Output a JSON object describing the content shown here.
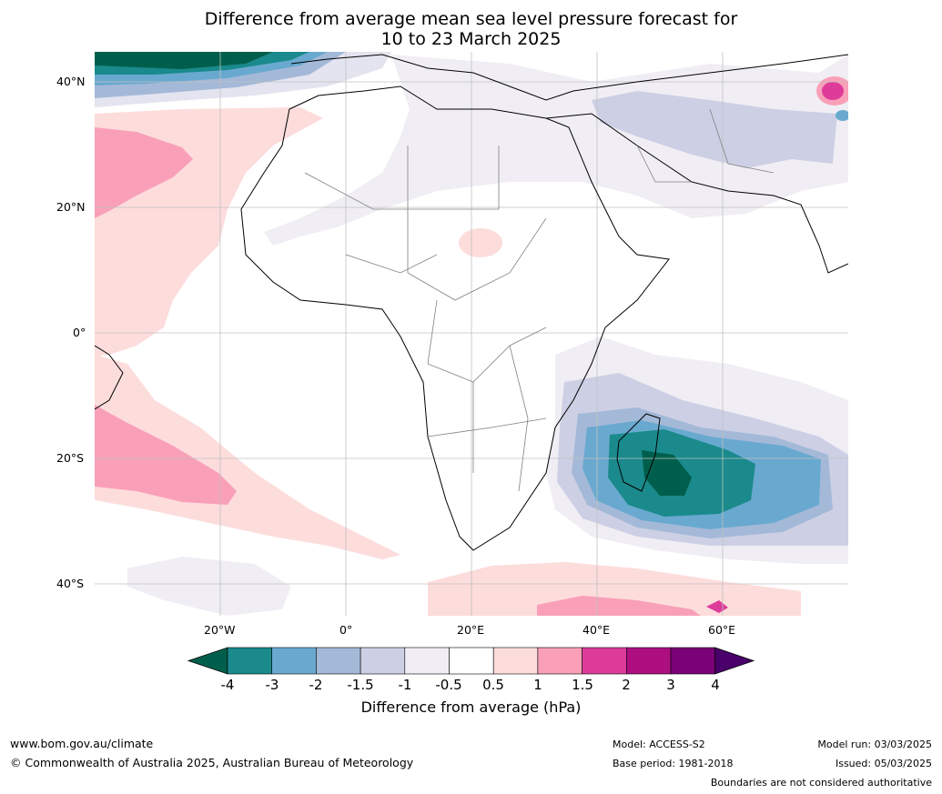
{
  "title_line1": "Difference from average mean sea level pressure forecast for",
  "title_line2": "10 to 23 March 2025",
  "lat_labels": [
    "40°N",
    "20°N",
    "0°",
    "20°S",
    "40°S"
  ],
  "lon_labels": [
    "20°W",
    "0°",
    "20°E",
    "40°E",
    "60°E"
  ],
  "colorbar": {
    "label": "Difference from average (hPa)",
    "ticks": [
      "-4",
      "-3",
      "-2",
      "-1.5",
      "-1",
      "-0.5",
      "0.5",
      "1",
      "1.5",
      "2",
      "3",
      "4"
    ],
    "colors": [
      "#005f4c",
      "#1a8a8c",
      "#69a9cf",
      "#a4b9d8",
      "#cdd0e4",
      "#f0eef4",
      "#ffffff",
      "#fddcdc",
      "#f9a0b8",
      "#dd3c9a",
      "#ad0f80",
      "#7a0177",
      "#49006a"
    ]
  },
  "footer": {
    "url": "www.bom.gov.au/climate",
    "copyright": "© Commonwealth of Australia 2025, Australian Bureau of Meteorology",
    "model": "Model: ACCESS-S2",
    "base_period": "Base period: 1981-2018",
    "model_run": "Model run: 03/03/2025",
    "issued": "Issued: 05/03/2025",
    "boundaries": "Boundaries are not considered authoritative"
  }
}
